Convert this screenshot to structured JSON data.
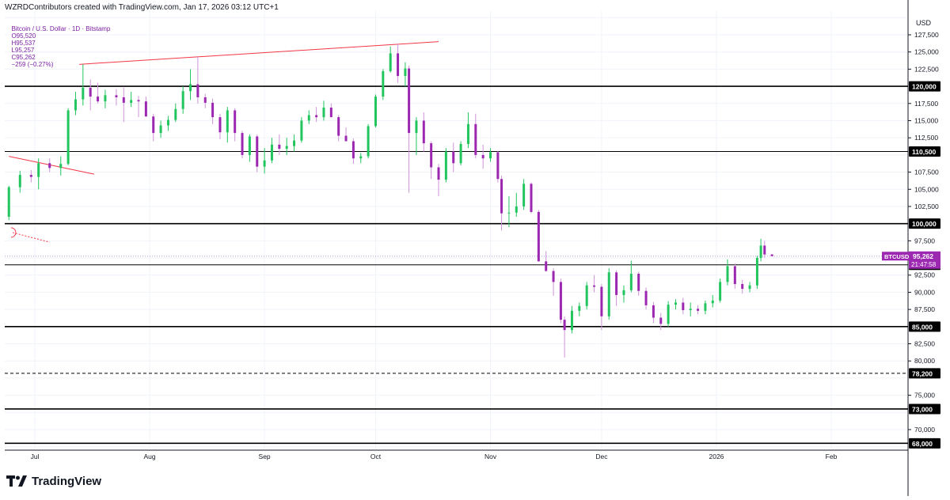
{
  "header": {
    "created_by": "WZRDContributors created with TradingView.com, Jan 17, 2026 03:12 UTC+1"
  },
  "symbol": {
    "name": "Bitcoin / U.S. Dollar · 1D · Bitstamp",
    "open": "O95,520",
    "high": "H95,537",
    "low": "L95,257",
    "close": "C95,262",
    "change": "−259 (−0.27%)"
  },
  "price_scale": {
    "currency": "USD",
    "ticks": [
      "127,500",
      "125,000",
      "122,500",
      "117,500",
      "115,000",
      "112,500",
      "107,500",
      "105,000",
      "102,500",
      "97,500",
      "92,500",
      "90,000",
      "87,500",
      "82,500",
      "80,000",
      "75,000",
      "70,000"
    ]
  },
  "time_axis": {
    "labels": [
      {
        "text": "Jul",
        "date": "2025-07-01"
      },
      {
        "text": "Aug",
        "date": "2025-08-01"
      },
      {
        "text": "Sep",
        "date": "2025-09-01"
      },
      {
        "text": "Oct",
        "date": "2025-10-01"
      },
      {
        "text": "Nov",
        "date": "2025-11-01"
      },
      {
        "text": "Dec",
        "date": "2025-12-01"
      },
      {
        "text": "2026",
        "date": "2026-01-01"
      },
      {
        "text": "Feb",
        "date": "2026-02-01"
      }
    ]
  },
  "current_price": {
    "symbol_tag": "BTCUSD",
    "price": "95,262",
    "countdown": "21:47:58",
    "value": 95262
  },
  "colors": {
    "up": "#22c55e",
    "down": "#9c27b0",
    "current_tag": "#9c27b0",
    "trendline": "#f23645",
    "level_line": "#000000",
    "grid": "#f0f3fa"
  },
  "brand": {
    "name": "TradingView",
    "icon": "tradingview-logo-icon"
  },
  "chart_data": {
    "type": "candlestick",
    "title": "Bitcoin / U.S. Dollar · 1D · Bitstamp",
    "ylabel": "USD",
    "ylim": [
      67500,
      130000
    ],
    "xlim": [
      "2025-06-24",
      "2026-02-24"
    ],
    "grid": true,
    "key_levels": [
      {
        "label": "120,000",
        "value": 120000,
        "style": "solid",
        "weight": "thick"
      },
      {
        "label": "110,500",
        "value": 110500,
        "style": "solid",
        "weight": "thin"
      },
      {
        "label": "100,000",
        "value": 100000,
        "style": "solid",
        "weight": "thick"
      },
      {
        "label": "94,000",
        "value": 94000,
        "style": "solid",
        "weight": "thin"
      },
      {
        "label": "85,000",
        "value": 85000,
        "style": "solid",
        "weight": "thick"
      },
      {
        "label": "78,200",
        "value": 78200,
        "style": "dashed",
        "weight": "thin"
      },
      {
        "label": "73,000",
        "value": 73000,
        "style": "solid",
        "weight": "thick"
      },
      {
        "label": "68,000",
        "value": 68000,
        "style": "solid",
        "weight": "thick"
      }
    ],
    "trendlines": [
      {
        "from": {
          "date": "2025-07-13",
          "price": 123200
        },
        "to": {
          "date": "2025-10-18",
          "price": 126500
        }
      },
      {
        "from": {
          "date": "2025-06-24",
          "price": 109800
        },
        "to": {
          "date": "2025-07-17",
          "price": 107200
        }
      },
      {
        "from": {
          "date": "2025-06-25",
          "price": 98700
        },
        "to": {
          "date": "2025-07-05",
          "price": 97300
        },
        "style": "dotted"
      }
    ],
    "candles": [
      [
        "2025-06-24",
        101000,
        105500,
        100500,
        105300
      ],
      [
        "2025-06-27",
        105300,
        107700,
        104500,
        107100
      ],
      [
        "2025-06-30",
        107100,
        107800,
        106000,
        106800
      ],
      [
        "2025-07-02",
        106800,
        109500,
        105000,
        108800
      ],
      [
        "2025-07-05",
        108800,
        109500,
        107500,
        108100
      ],
      [
        "2025-07-08",
        108100,
        109800,
        107000,
        108700
      ],
      [
        "2025-07-10",
        108700,
        116800,
        108500,
        116500
      ],
      [
        "2025-07-12",
        116500,
        119200,
        115800,
        118100
      ],
      [
        "2025-07-14",
        118100,
        123200,
        117200,
        119800
      ],
      [
        "2025-07-16",
        119800,
        121000,
        116500,
        118500
      ],
      [
        "2025-07-18",
        118500,
        120500,
        117500,
        117800
      ],
      [
        "2025-07-20",
        117800,
        119500,
        116800,
        118700
      ],
      [
        "2025-07-23",
        118700,
        119600,
        117200,
        118400
      ],
      [
        "2025-07-25",
        118400,
        119800,
        114800,
        117600
      ],
      [
        "2025-07-27",
        117600,
        119200,
        117000,
        118000
      ],
      [
        "2025-07-29",
        118000,
        118600,
        115500,
        117800
      ],
      [
        "2025-07-31",
        117800,
        118500,
        115800,
        115600
      ],
      [
        "2025-08-02",
        115600,
        116000,
        112000,
        113200
      ],
      [
        "2025-08-04",
        113200,
        115000,
        112500,
        114300
      ],
      [
        "2025-08-06",
        114300,
        115700,
        113500,
        115100
      ],
      [
        "2025-08-08",
        115100,
        117500,
        114800,
        116700
      ],
      [
        "2025-08-10",
        116700,
        120000,
        116000,
        119300
      ],
      [
        "2025-08-12",
        119300,
        122500,
        118000,
        120300
      ],
      [
        "2025-08-14",
        120300,
        124300,
        117500,
        118400
      ],
      [
        "2025-08-16",
        118400,
        118900,
        116800,
        117600
      ],
      [
        "2025-08-18",
        117600,
        118200,
        114500,
        115500
      ],
      [
        "2025-08-20",
        115500,
        116000,
        112300,
        113300
      ],
      [
        "2025-08-22",
        113300,
        117000,
        111800,
        116500
      ],
      [
        "2025-08-24",
        116500,
        116800,
        112000,
        113200
      ],
      [
        "2025-08-26",
        113200,
        113500,
        109500,
        110000
      ],
      [
        "2025-08-28",
        110000,
        113000,
        109000,
        112700
      ],
      [
        "2025-08-30",
        112700,
        113000,
        107500,
        108300
      ],
      [
        "2025-09-01",
        108300,
        111000,
        107300,
        109200
      ],
      [
        "2025-09-03",
        109200,
        112500,
        108800,
        111500
      ],
      [
        "2025-09-05",
        111500,
        113000,
        110000,
        110900
      ],
      [
        "2025-09-07",
        110900,
        112500,
        110000,
        111300
      ],
      [
        "2025-09-09",
        111300,
        113000,
        110500,
        112100
      ],
      [
        "2025-09-11",
        112100,
        115500,
        111800,
        115000
      ],
      [
        "2025-09-13",
        115000,
        116500,
        114500,
        115800
      ],
      [
        "2025-09-15",
        115800,
        117000,
        114800,
        115500
      ],
      [
        "2025-09-17",
        115500,
        117900,
        115000,
        116900
      ],
      [
        "2025-09-19",
        116900,
        117500,
        115500,
        115500
      ],
      [
        "2025-09-21",
        115500,
        115800,
        112000,
        112800
      ],
      [
        "2025-09-23",
        112800,
        114000,
        112000,
        112000
      ],
      [
        "2025-09-25",
        112000,
        112400,
        108700,
        109500
      ],
      [
        "2025-09-27",
        109500,
        110300,
        108800,
        109800
      ],
      [
        "2025-09-29",
        109800,
        114500,
        109500,
        114200
      ],
      [
        "2025-10-01",
        114200,
        118800,
        114000,
        118500
      ],
      [
        "2025-10-03",
        118500,
        122500,
        118000,
        122200
      ],
      [
        "2025-10-05",
        122200,
        125800,
        122000,
        124800
      ],
      [
        "2025-10-07",
        124800,
        126200,
        120500,
        121500
      ],
      [
        "2025-10-09",
        121500,
        123500,
        120000,
        122600
      ],
      [
        "2025-10-10",
        122600,
        123000,
        104500,
        113200
      ],
      [
        "2025-10-12",
        113200,
        115500,
        110000,
        115000
      ],
      [
        "2025-10-14",
        115000,
        116200,
        110500,
        111700
      ],
      [
        "2025-10-16",
        111700,
        112000,
        106500,
        108200
      ],
      [
        "2025-10-18",
        108200,
        108700,
        104000,
        106400
      ],
      [
        "2025-10-20",
        106400,
        111000,
        106000,
        110500
      ],
      [
        "2025-10-22",
        110500,
        111800,
        107500,
        108800
      ],
      [
        "2025-10-24",
        108800,
        112000,
        108500,
        111600
      ],
      [
        "2025-10-26",
        111600,
        116200,
        111000,
        114500
      ],
      [
        "2025-10-28",
        114500,
        116000,
        109500,
        110000
      ],
      [
        "2025-10-30",
        110000,
        111500,
        108000,
        109500
      ],
      [
        "2025-11-01",
        109500,
        111000,
        109000,
        110400
      ],
      [
        "2025-11-03",
        110400,
        110600,
        106000,
        106500
      ],
      [
        "2025-11-04",
        106500,
        107000,
        99000,
        101500
      ],
      [
        "2025-11-06",
        101500,
        104000,
        99500,
        101600
      ],
      [
        "2025-11-08",
        101600,
        104500,
        101000,
        102500
      ],
      [
        "2025-11-10",
        102500,
        106500,
        102000,
        105800
      ],
      [
        "2025-11-12",
        105800,
        106000,
        101500,
        101700
      ],
      [
        "2025-11-14",
        101700,
        102000,
        94500,
        94500
      ],
      [
        "2025-11-16",
        94500,
        96000,
        93000,
        93100
      ],
      [
        "2025-11-18",
        93100,
        93500,
        89500,
        91500
      ],
      [
        "2025-11-20",
        91500,
        92000,
        85500,
        86000
      ],
      [
        "2025-11-21",
        86000,
        86500,
        80500,
        84500
      ],
      [
        "2025-11-23",
        84500,
        88000,
        84000,
        87300
      ],
      [
        "2025-11-25",
        87300,
        88500,
        86500,
        88000
      ],
      [
        "2025-11-27",
        88000,
        91500,
        87500,
        91000
      ],
      [
        "2025-11-29",
        91000,
        92500,
        90000,
        90800
      ],
      [
        "2025-12-01",
        90800,
        91200,
        84500,
        86500
      ],
      [
        "2025-12-03",
        86500,
        93500,
        86000,
        92900
      ],
      [
        "2025-12-05",
        92900,
        93200,
        88000,
        89600
      ],
      [
        "2025-12-07",
        89600,
        91000,
        88500,
        90300
      ],
      [
        "2025-12-09",
        90300,
        94600,
        90000,
        92700
      ],
      [
        "2025-12-11",
        92700,
        93000,
        89500,
        90200
      ],
      [
        "2025-12-13",
        90200,
        90700,
        87500,
        88100
      ],
      [
        "2025-12-15",
        88100,
        88600,
        85500,
        86300
      ],
      [
        "2025-12-17",
        86300,
        87000,
        84500,
        85400
      ],
      [
        "2025-12-19",
        85400,
        88700,
        85000,
        88200
      ],
      [
        "2025-12-21",
        88200,
        89000,
        87500,
        88500
      ],
      [
        "2025-12-23",
        88500,
        89200,
        86800,
        87400
      ],
      [
        "2025-12-25",
        87400,
        88500,
        86500,
        87600
      ],
      [
        "2025-12-27",
        87600,
        88100,
        86800,
        87300
      ],
      [
        "2025-12-29",
        87300,
        88800,
        86800,
        88400
      ],
      [
        "2025-12-31",
        88400,
        89600,
        87800,
        88800
      ],
      [
        "2026-01-02",
        88800,
        92000,
        88500,
        91500
      ],
      [
        "2026-01-04",
        91500,
        94800,
        91000,
        93800
      ],
      [
        "2026-01-06",
        93800,
        94200,
        90500,
        91200
      ],
      [
        "2026-01-08",
        91200,
        91800,
        89800,
        90500
      ],
      [
        "2026-01-10",
        90500,
        91500,
        90000,
        91000
      ],
      [
        "2026-01-12",
        91000,
        95300,
        90500,
        95000
      ],
      [
        "2026-01-13",
        95000,
        97800,
        94500,
        96800
      ],
      [
        "2026-01-14",
        96800,
        97500,
        95000,
        95500
      ],
      [
        "2026-01-16",
        95520,
        95537,
        95257,
        95262
      ]
    ]
  }
}
